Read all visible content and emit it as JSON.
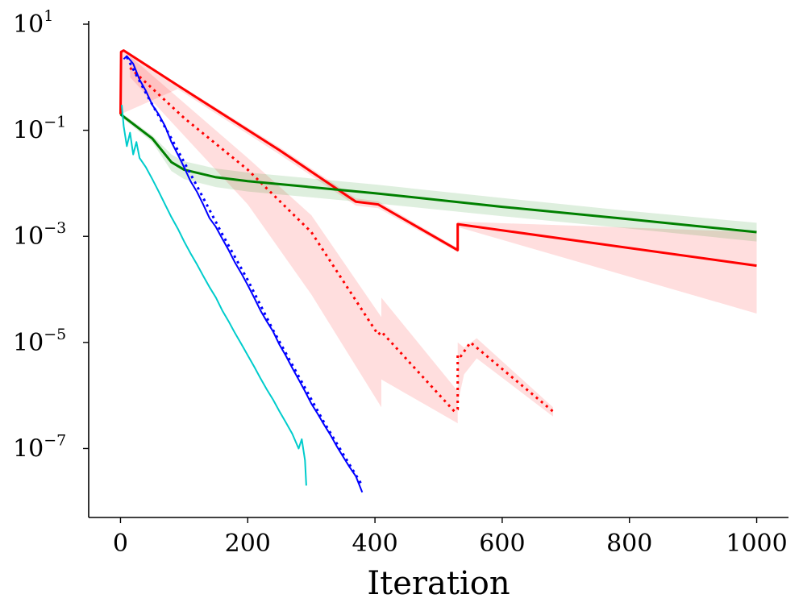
{
  "chart_data": {
    "type": "line",
    "title": "",
    "xlabel": "Iteration",
    "ylabel": "",
    "xlim": [
      -50,
      1050
    ],
    "ylim_log10": [
      -8.3,
      1.0
    ],
    "yscale": "log",
    "grid": false,
    "legend": "none",
    "x_ticks": [
      0,
      200,
      400,
      600,
      800,
      1000
    ],
    "x_tick_labels": [
      "0",
      "200",
      "400",
      "600",
      "800",
      "1000"
    ],
    "y_ticks": [
      {
        "base": "10",
        "exp": "1",
        "log": 1
      },
      {
        "base": "10",
        "exp": "−1",
        "log": -1
      },
      {
        "base": "10",
        "exp": "−3",
        "log": -3
      },
      {
        "base": "10",
        "exp": "−5",
        "log": -5
      },
      {
        "base": "10",
        "exp": "−7",
        "log": -7
      }
    ],
    "series": [
      {
        "color": "#ff0000",
        "style": "solid",
        "width": 3,
        "x": [
          0,
          1,
          5,
          90,
          250,
          370,
          405,
          530,
          530,
          1000
        ],
        "y": [
          0.2,
          3.0,
          3.2,
          0.7,
          0.042,
          0.0045,
          0.004,
          0.00055,
          0.0017,
          0.00028
        ],
        "band": {
          "x": [
            0,
            90,
            250,
            370,
            405,
            530,
            530,
            1000
          ],
          "lower": [
            0.2,
            0.6,
            0.035,
            0.0038,
            0.0034,
            0.0005,
            0.0015,
            3.5e-05
          ],
          "upper": [
            3.3,
            0.75,
            0.048,
            0.0052,
            0.0046,
            0.0006,
            0.0019,
            0.0012
          ]
        }
      },
      {
        "color": "#ff0000",
        "style": "dotted",
        "width": 3,
        "x": [
          15,
          100,
          200,
          300,
          405,
          410,
          525,
          530,
          530,
          535,
          550,
          680
        ],
        "y": [
          1.5,
          0.17,
          0.018,
          0.0012,
          1.4e-05,
          1.6e-05,
          5e-07,
          5.5e-07,
          6e-06,
          5.5e-06,
          1e-05,
          5e-07
        ],
        "band": {
          "x": [
            15,
            200,
            300,
            410,
            410,
            530,
            530,
            540,
            560,
            680
          ],
          "lower": [
            1.0,
            0.004,
            8e-05,
            6e-07,
            2e-06,
            3e-07,
            7e-07,
            2.5e-06,
            5e-06,
            4e-07
          ],
          "upper": [
            2.5,
            0.03,
            0.0025,
            3e-05,
            7e-05,
            1.2e-06,
            1e-05,
            8e-06,
            1.2e-05,
            6e-07
          ]
        }
      },
      {
        "color": "#008000",
        "style": "solid",
        "width": 3,
        "x": [
          0,
          50,
          80,
          100,
          150,
          200,
          400,
          600,
          800,
          1000
        ],
        "y": [
          0.2,
          0.07,
          0.025,
          0.018,
          0.013,
          0.011,
          0.0065,
          0.0036,
          0.0021,
          0.0012
        ],
        "band": {
          "x": [
            0,
            50,
            80,
            100,
            150,
            200,
            400,
            600,
            800,
            1000
          ],
          "lower": [
            0.18,
            0.06,
            0.017,
            0.012,
            0.0085,
            0.007,
            0.0042,
            0.0024,
            0.0014,
            0.0008
          ],
          "upper": [
            0.22,
            0.08,
            0.035,
            0.026,
            0.019,
            0.016,
            0.0095,
            0.0053,
            0.003,
            0.0018
          ]
        }
      },
      {
        "color": "#0000ff",
        "style": "solid",
        "width": 2,
        "x": [
          5,
          10,
          20,
          30,
          40,
          50,
          60,
          70,
          80,
          90,
          100,
          110,
          120,
          130,
          140,
          150,
          160,
          170,
          180,
          190,
          200,
          210,
          220,
          230,
          240,
          250,
          260,
          270,
          280,
          290,
          300,
          310,
          320,
          330,
          340,
          350,
          360,
          370,
          380
        ],
        "y": [
          2.2,
          2.5,
          1.8,
          0.9,
          0.55,
          0.3,
          0.2,
          0.12,
          0.06,
          0.035,
          0.02,
          0.011,
          0.007,
          0.004,
          0.0022,
          0.0015,
          0.0009,
          0.00055,
          0.00032,
          0.0002,
          0.00012,
          7e-05,
          4e-05,
          2.5e-05,
          1.6e-05,
          9e-06,
          5.6e-06,
          3.3e-06,
          2e-06,
          1.2e-06,
          7e-07,
          4.5e-07,
          2.8e-07,
          1.8e-07,
          1.1e-07,
          7e-08,
          4.5e-08,
          3e-08,
          1.5e-08
        ]
      },
      {
        "color": "#0000ff",
        "style": "dotted",
        "width": 3,
        "x": [
          10,
          40,
          80,
          120,
          160,
          200,
          240,
          280,
          320,
          360,
          380
        ],
        "y": [
          2.4,
          0.5,
          0.07,
          0.009,
          0.0011,
          0.00015,
          1.7e-05,
          2.3e-06,
          3.1e-07,
          5e-08,
          2e-08
        ]
      },
      {
        "color": "#00cccc",
        "style": "solid",
        "width": 2,
        "x": [
          2,
          5,
          10,
          15,
          20,
          25,
          30,
          40,
          50,
          60,
          70,
          80,
          90,
          100,
          110,
          120,
          130,
          140,
          150,
          160,
          170,
          180,
          190,
          200,
          210,
          220,
          230,
          240,
          250,
          260,
          270,
          280,
          285,
          290,
          292
        ],
        "y": [
          0.3,
          0.12,
          0.05,
          0.09,
          0.035,
          0.06,
          0.03,
          0.02,
          0.012,
          0.007,
          0.004,
          0.0023,
          0.0014,
          0.0008,
          0.00048,
          0.0003,
          0.00018,
          0.00011,
          7e-05,
          4e-05,
          2.5e-05,
          1.5e-05,
          9.3e-06,
          5.7e-06,
          3.5e-06,
          2.1e-06,
          1.3e-06,
          8.3e-07,
          5e-07,
          3.1e-07,
          1.9e-07,
          1e-07,
          1.5e-07,
          6e-08,
          2e-08
        ]
      }
    ]
  }
}
